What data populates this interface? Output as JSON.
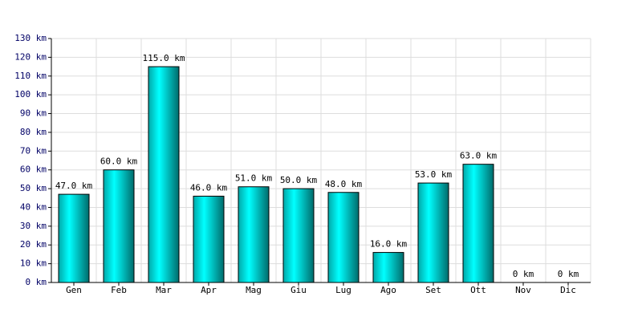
{
  "chart_data": {
    "type": "bar",
    "categories": [
      "Gen",
      "Feb",
      "Mar",
      "Apr",
      "Mag",
      "Giu",
      "Lug",
      "Ago",
      "Set",
      "Ott",
      "Nov",
      "Dic"
    ],
    "values": [
      47,
      60,
      115,
      46,
      51,
      50,
      48,
      16,
      53,
      63,
      0,
      0
    ],
    "value_labels": [
      "47.0 km",
      "60.0 km",
      "115.0 km",
      "46.0 km",
      "51.0 km",
      "50.0 km",
      "48.0 km",
      "16.0 km",
      "53.0 km",
      "63.0 km",
      "0 km",
      "0 km"
    ],
    "color": "#00cccc",
    "ylim": [
      0,
      130
    ],
    "yticks": [
      {
        "value": 0,
        "label": "0 km"
      },
      {
        "value": 10,
        "label": "10 km"
      },
      {
        "value": 20,
        "label": "20 km"
      },
      {
        "value": 30,
        "label": "30 km"
      },
      {
        "value": 40,
        "label": "40 km"
      },
      {
        "value": 50,
        "label": "50 km"
      },
      {
        "value": 60,
        "label": "60 km"
      },
      {
        "value": 70,
        "label": "70 km"
      },
      {
        "value": 80,
        "label": "80 km"
      },
      {
        "value": 90,
        "label": "90 km"
      },
      {
        "value": 100,
        "label": "100 km"
      },
      {
        "value": 110,
        "label": "110 km"
      },
      {
        "value": 120,
        "label": "120 km"
      },
      {
        "value": 130,
        "label": "130 km"
      }
    ],
    "grid": true
  }
}
